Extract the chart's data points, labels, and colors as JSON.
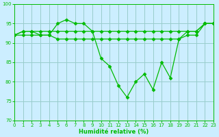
{
  "xlabel": "Humidité relative (%)",
  "bg_color": "#cceeff",
  "grid_color": "#99cccc",
  "line_color": "#00bb00",
  "ylim": [
    70,
    100
  ],
  "xlim": [
    0,
    23
  ],
  "yticks": [
    70,
    75,
    80,
    85,
    90,
    95,
    100
  ],
  "xticks": [
    0,
    1,
    2,
    3,
    4,
    5,
    6,
    7,
    8,
    9,
    10,
    11,
    12,
    13,
    14,
    15,
    16,
    17,
    18,
    19,
    20,
    21,
    22,
    23
  ],
  "series1": [
    92,
    93,
    93,
    92,
    92,
    95,
    96,
    95,
    95,
    93,
    86,
    84,
    79,
    76,
    80,
    82,
    78,
    85,
    81,
    91,
    93,
    93,
    95,
    95
  ],
  "series2": [
    92,
    93,
    93,
    93,
    93,
    93,
    93,
    93,
    93,
    93,
    93,
    93,
    93,
    93,
    93,
    93,
    93,
    93,
    93,
    93,
    93,
    93,
    95,
    95
  ],
  "series3": [
    92,
    92,
    92,
    92,
    92,
    91,
    91,
    91,
    91,
    91,
    91,
    91,
    91,
    91,
    91,
    91,
    91,
    91,
    91,
    91,
    92,
    92,
    95,
    95
  ]
}
